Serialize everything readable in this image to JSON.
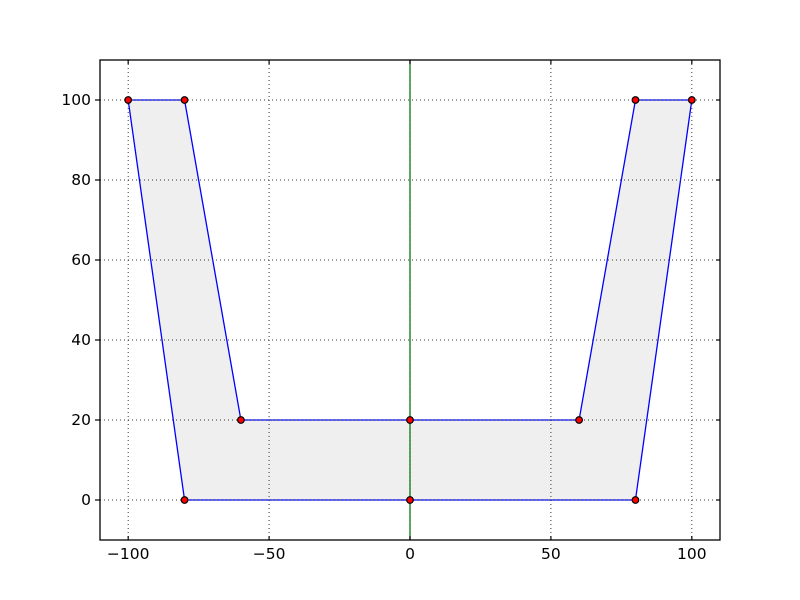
{
  "figure": {
    "background": "#ffffff",
    "axes_background": "#ffffff",
    "spine_color": "#000000",
    "tick_color": "#000000",
    "grid_color": "#3a3a3a"
  },
  "chart_data": {
    "type": "line",
    "title": "",
    "xlabel": "",
    "ylabel": "",
    "xlim": [
      -110,
      110
    ],
    "ylim": [
      -10,
      110
    ],
    "grid": true,
    "grid_style": "dotted",
    "legend": "none",
    "xticks": [
      {
        "value": -100,
        "label": "−100"
      },
      {
        "value": -50,
        "label": "−50"
      },
      {
        "value": 0,
        "label": "0"
      },
      {
        "value": 50,
        "label": "50"
      },
      {
        "value": 100,
        "label": "100"
      }
    ],
    "yticks": [
      {
        "value": 0,
        "label": "0"
      },
      {
        "value": 20,
        "label": "20"
      },
      {
        "value": 40,
        "label": "40"
      },
      {
        "value": 60,
        "label": "60"
      },
      {
        "value": 80,
        "label": "80"
      },
      {
        "value": 100,
        "label": "100"
      }
    ],
    "series": [
      {
        "name": "u-shape-polygon",
        "kind": "polygon",
        "closed": true,
        "fill": "#efefef",
        "stroke": "#0000ff",
        "points": [
          [
            -100,
            100
          ],
          [
            -80,
            100
          ],
          [
            -60,
            20
          ],
          [
            0,
            20
          ],
          [
            60,
            20
          ],
          [
            80,
            100
          ],
          [
            100,
            100
          ],
          [
            80,
            0
          ],
          [
            0,
            0
          ],
          [
            -80,
            0
          ]
        ]
      },
      {
        "name": "axis-vertical-line",
        "kind": "vline",
        "x": 0,
        "stroke": "#008000"
      },
      {
        "name": "vertex-markers",
        "kind": "scatter",
        "marker": "circle",
        "fill": "#ff0000",
        "edge": "#000000",
        "points": [
          [
            -100,
            100
          ],
          [
            -80,
            100
          ],
          [
            -60,
            20
          ],
          [
            0,
            20
          ],
          [
            60,
            20
          ],
          [
            80,
            100
          ],
          [
            100,
            100
          ],
          [
            80,
            0
          ],
          [
            0,
            0
          ],
          [
            -80,
            0
          ]
        ]
      }
    ]
  }
}
